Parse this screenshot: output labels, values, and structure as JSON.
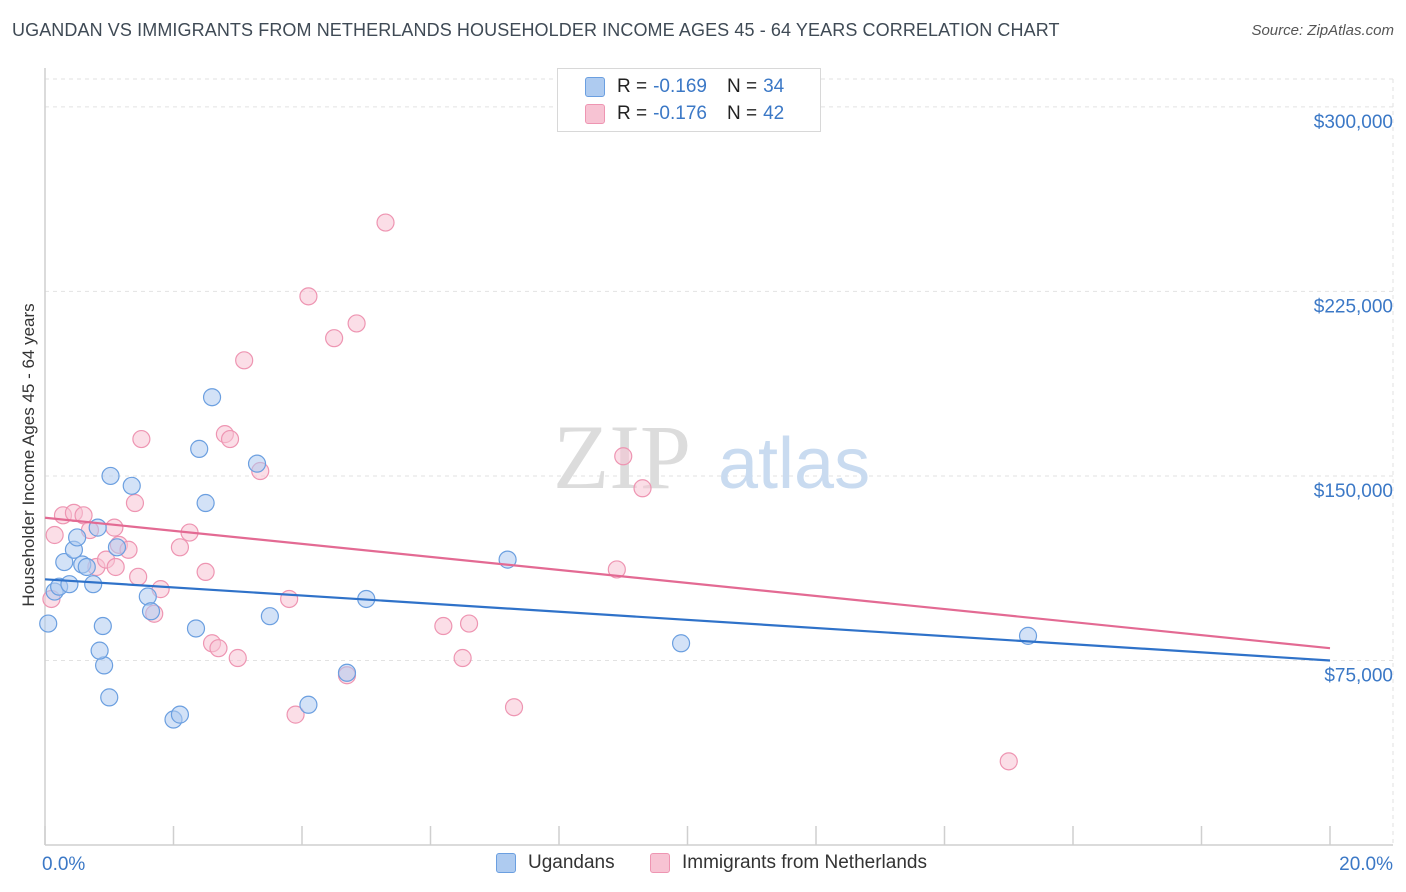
{
  "header": {
    "title": "UGANDAN VS IMMIGRANTS FROM NETHERLANDS HOUSEHOLDER INCOME AGES 45 - 64 YEARS CORRELATION CHART",
    "source": "Source: ZipAtlas.com"
  },
  "watermark": {
    "zip": "ZIP",
    "atlas": "atlas"
  },
  "legend": {
    "rows": [
      {
        "r_label": "R =",
        "r_value": "-0.169",
        "n_label": "N =",
        "n_value": "34"
      },
      {
        "r_label": "R =",
        "r_value": "-0.176",
        "n_label": "N =",
        "n_value": "42"
      }
    ]
  },
  "bottom_legend": {
    "items": [
      {
        "label": "Ugandans"
      },
      {
        "label": "Immigrants from Netherlands"
      }
    ]
  },
  "colors": {
    "blue_fill": "#aecbf0",
    "blue_stroke": "#6b9fe0",
    "blue_line": "#2f72c9",
    "pink_fill": "#f7c3d3",
    "pink_stroke": "#ee95b2",
    "pink_line": "#e36a93",
    "tick_text": "#3b78c6",
    "grid": "#e2e2e2"
  },
  "chart_data": {
    "type": "scatter",
    "title": "UGANDAN VS IMMIGRANTS FROM NETHERLANDS HOUSEHOLDER INCOME AGES 45 - 64 YEARS CORRELATION CHART",
    "xlabel": "",
    "ylabel": "Householder Income Ages 45 - 64 years",
    "xlim": [
      0,
      20
    ],
    "ylim": [
      0,
      315000
    ],
    "x_tick_labels": [
      "0.0%",
      "20.0%"
    ],
    "y_ticks": [
      75000,
      150000,
      225000,
      300000
    ],
    "y_tick_labels": [
      "$75,000",
      "$150,000",
      "$225,000",
      "$300,000"
    ],
    "grid": true,
    "series": [
      {
        "name": "Ugandans",
        "r": -0.169,
        "n": 34,
        "trend": {
          "x": [
            0,
            20
          ],
          "y": [
            108000,
            75000
          ]
        },
        "points": [
          [
            0.05,
            90000
          ],
          [
            0.15,
            103000
          ],
          [
            0.22,
            105000
          ],
          [
            0.3,
            115000
          ],
          [
            0.38,
            106000
          ],
          [
            0.45,
            120000
          ],
          [
            0.5,
            125000
          ],
          [
            0.58,
            114000
          ],
          [
            0.65,
            113000
          ],
          [
            0.75,
            106000
          ],
          [
            0.82,
            129000
          ],
          [
            0.9,
            89000
          ],
          [
            0.92,
            73000
          ],
          [
            1.0,
            60000
          ],
          [
            1.02,
            150000
          ],
          [
            1.12,
            121000
          ],
          [
            1.35,
            146000
          ],
          [
            1.6,
            101000
          ],
          [
            1.65,
            95000
          ],
          [
            2.0,
            51000
          ],
          [
            2.1,
            53000
          ],
          [
            2.35,
            88000
          ],
          [
            2.4,
            161000
          ],
          [
            2.5,
            139000
          ],
          [
            2.6,
            182000
          ],
          [
            3.3,
            155000
          ],
          [
            3.5,
            93000
          ],
          [
            4.1,
            57000
          ],
          [
            4.7,
            70000
          ],
          [
            5.0,
            100000
          ],
          [
            7.2,
            116000
          ],
          [
            9.9,
            82000
          ],
          [
            15.3,
            85000
          ],
          [
            0.85,
            79000
          ]
        ]
      },
      {
        "name": "Immigrants from Netherlands",
        "r": -0.176,
        "n": 42,
        "trend": {
          "x": [
            0,
            20
          ],
          "y": [
            133000,
            80000
          ]
        },
        "points": [
          [
            0.1,
            100000
          ],
          [
            0.15,
            126000
          ],
          [
            0.28,
            134000
          ],
          [
            0.45,
            135000
          ],
          [
            0.6,
            134000
          ],
          [
            0.7,
            128000
          ],
          [
            0.8,
            113000
          ],
          [
            0.95,
            116000
          ],
          [
            1.08,
            129000
          ],
          [
            1.15,
            122000
          ],
          [
            1.3,
            120000
          ],
          [
            1.4,
            139000
          ],
          [
            1.45,
            109000
          ],
          [
            1.5,
            165000
          ],
          [
            1.7,
            94000
          ],
          [
            1.8,
            104000
          ],
          [
            2.1,
            121000
          ],
          [
            2.25,
            127000
          ],
          [
            2.5,
            111000
          ],
          [
            2.6,
            82000
          ],
          [
            2.7,
            80000
          ],
          [
            2.8,
            167000
          ],
          [
            2.88,
            165000
          ],
          [
            3.0,
            76000
          ],
          [
            3.1,
            197000
          ],
          [
            3.35,
            152000
          ],
          [
            3.8,
            100000
          ],
          [
            3.9,
            53000
          ],
          [
            4.1,
            223000
          ],
          [
            4.5,
            206000
          ],
          [
            4.7,
            69000
          ],
          [
            4.85,
            212000
          ],
          [
            5.3,
            253000
          ],
          [
            6.2,
            89000
          ],
          [
            6.5,
            76000
          ],
          [
            6.6,
            90000
          ],
          [
            7.3,
            56000
          ],
          [
            8.9,
            112000
          ],
          [
            9.0,
            158000
          ],
          [
            9.3,
            145000
          ],
          [
            15.0,
            34000
          ],
          [
            1.1,
            113000
          ]
        ]
      }
    ]
  }
}
